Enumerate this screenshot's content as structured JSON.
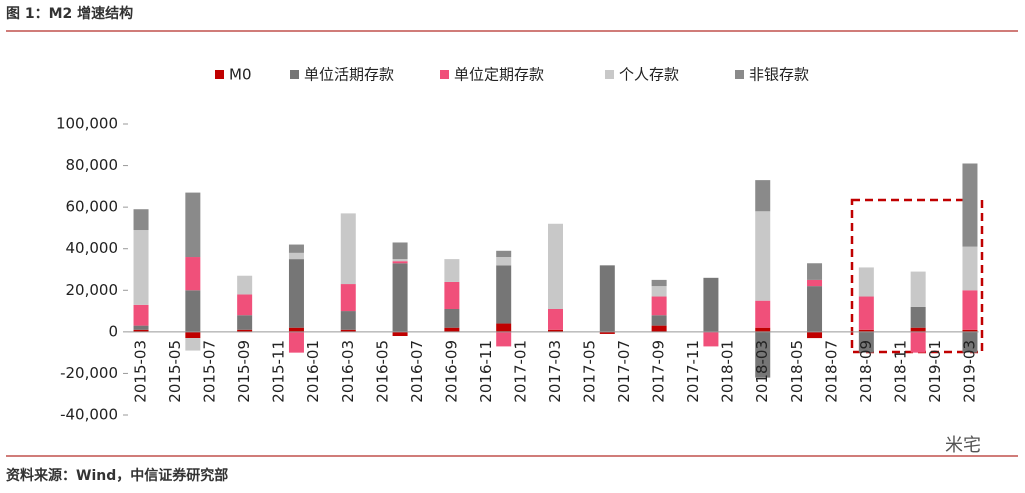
{
  "chart_data": {
    "type": "bar",
    "stacked": true,
    "title": "图 1：M2 增速结构",
    "source": "资料来源：Wind，中信证券研究部",
    "watermark": "米宅",
    "categories": [
      "2015-03",
      null,
      "2015-05",
      null,
      "2015-07",
      null,
      "2015-09",
      null,
      "2015-11",
      null,
      "2016-01",
      null,
      "2016-03",
      null,
      "2016-05",
      null,
      "2016-07",
      null,
      "2016-09",
      null,
      "2016-11",
      null,
      "2017-01",
      null,
      "2017-03",
      null,
      "2017-05",
      null,
      "2017-07",
      null,
      "2017-09",
      null,
      "2017-11",
      null,
      "2018-01",
      null,
      "2018-03",
      null,
      "2018-05",
      null,
      "2018-07",
      null,
      "2018-09",
      null,
      "2018-11",
      null,
      "2019-01",
      null,
      "2019-03"
    ],
    "series": [
      {
        "name": "M0",
        "color": "#c00000",
        "values": [
          1000,
          null,
          null,
          -3000,
          null,
          null,
          1000,
          null,
          null,
          2000,
          null,
          null,
          1000,
          null,
          null,
          -2000,
          null,
          null,
          2000,
          null,
          null,
          4000,
          null,
          null,
          1000,
          null,
          null,
          -1000,
          null,
          null,
          3000,
          null,
          null,
          0,
          null,
          null,
          2000,
          null,
          null,
          -3000,
          null,
          null,
          1000,
          null,
          null,
          2000,
          null,
          null,
          1000
        ]
      },
      {
        "name": "单位活期存款",
        "color": "#767676",
        "values": [
          2000,
          null,
          null,
          20000,
          null,
          null,
          7000,
          null,
          null,
          33000,
          null,
          null,
          9000,
          null,
          null,
          33000,
          null,
          null,
          9000,
          null,
          null,
          28000,
          null,
          null,
          0,
          null,
          null,
          32000,
          null,
          null,
          5000,
          null,
          null,
          26000,
          null,
          null,
          -22000,
          null,
          null,
          22000,
          null,
          null,
          -10000,
          null,
          null,
          10000,
          null,
          null,
          -10000
        ]
      },
      {
        "name": "单位定期存款",
        "color": "#f0507a",
        "values": [
          10000,
          null,
          null,
          16000,
          null,
          null,
          10000,
          null,
          null,
          -10000,
          null,
          null,
          13000,
          null,
          null,
          1000,
          null,
          null,
          13000,
          null,
          null,
          -7000,
          null,
          null,
          10000,
          null,
          null,
          0,
          null,
          null,
          9000,
          null,
          null,
          -7000,
          null,
          null,
          13000,
          null,
          null,
          3000,
          null,
          null,
          16000,
          null,
          null,
          -10000,
          null,
          null,
          19000
        ]
      },
      {
        "name": "个人存款",
        "color": "#c8c8c8",
        "values": [
          36000,
          null,
          null,
          -6000,
          null,
          null,
          9000,
          null,
          null,
          3000,
          null,
          null,
          34000,
          null,
          null,
          1000,
          null,
          null,
          11000,
          null,
          null,
          4000,
          null,
          null,
          41000,
          null,
          null,
          0,
          null,
          null,
          5000,
          null,
          null,
          0,
          null,
          null,
          43000,
          null,
          null,
          0,
          null,
          null,
          14000,
          null,
          null,
          17000,
          null,
          null,
          21000
        ]
      },
      {
        "name": "非银存款",
        "color": "#8a8a8a",
        "values": [
          10000,
          null,
          null,
          31000,
          null,
          null,
          0,
          null,
          null,
          4000,
          null,
          null,
          0,
          null,
          null,
          8000,
          null,
          null,
          0,
          null,
          null,
          3000,
          null,
          null,
          0,
          null,
          null,
          0,
          null,
          null,
          3000,
          null,
          null,
          0,
          null,
          null,
          15000,
          null,
          null,
          8000,
          null,
          null,
          0,
          null,
          null,
          0,
          null,
          null,
          40000
        ]
      }
    ],
    "ylim": [
      -40000,
      100000
    ],
    "yticks": [
      {
        "value": -40000,
        "label": "-40,000"
      },
      {
        "value": -20000,
        "label": "-20,000"
      },
      0,
      {
        "value": 20000,
        "label": "20,000"
      },
      {
        "value": 40000,
        "label": "40,000"
      },
      {
        "value": 60000,
        "label": "60,000"
      },
      {
        "value": 80000,
        "label": "80,000"
      },
      {
        "value": 100000,
        "label": "100,000"
      }
    ],
    "legend": "top"
  }
}
